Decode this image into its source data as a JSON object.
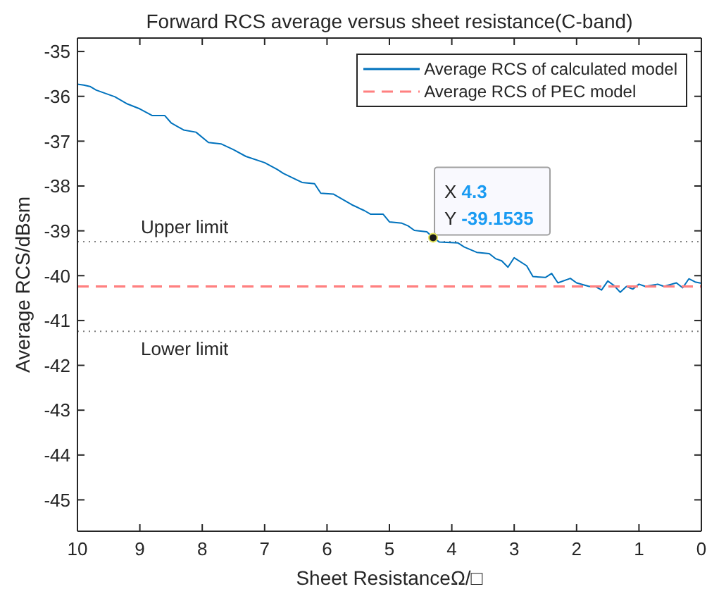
{
  "chart_data": {
    "type": "line",
    "title": "Forward RCS average versus sheet resistance(C-band)",
    "xlabel": "Sheet ResistanceΩ/□",
    "ylabel": "Average RCS/dBsm",
    "series": [
      {
        "name": "Average RCS of calculated model",
        "color": "#0072bd",
        "x": [
          10,
          9.9,
          9.8,
          9.7,
          9.4,
          9.2,
          9.0,
          8.8,
          8.6,
          8.5,
          8.3,
          8.1,
          7.9,
          7.7,
          7.5,
          7.3,
          7.0,
          6.8,
          6.7,
          6.4,
          6.2,
          6.1,
          5.9,
          5.6,
          5.4,
          5.3,
          5.1,
          5.0,
          4.8,
          4.7,
          4.6,
          4.4,
          4.3,
          4.2,
          3.9,
          3.8,
          3.6,
          3.4,
          3.3,
          3.2,
          3.1,
          3.0,
          2.8,
          2.7,
          2.5,
          2.4,
          2.3,
          2.1,
          2.0,
          1.8,
          1.7,
          1.6,
          1.5,
          1.4,
          1.3,
          1.2,
          1.1,
          1.0,
          0.9,
          0.7,
          0.6,
          0.4,
          0.3,
          0.2,
          0.1,
          0
        ],
        "values": [
          -35.73,
          -35.75,
          -35.78,
          -35.86,
          -36.01,
          -36.17,
          -36.28,
          -36.43,
          -36.43,
          -36.59,
          -36.75,
          -36.8,
          -37.03,
          -37.06,
          -37.19,
          -37.34,
          -37.48,
          -37.63,
          -37.72,
          -37.92,
          -37.95,
          -38.16,
          -38.18,
          -38.42,
          -38.55,
          -38.63,
          -38.63,
          -38.8,
          -38.83,
          -38.89,
          -38.99,
          -39.02,
          -39.15,
          -39.25,
          -39.27,
          -39.36,
          -39.48,
          -39.51,
          -39.62,
          -39.67,
          -39.81,
          -39.6,
          -39.78,
          -40.02,
          -40.04,
          -39.95,
          -40.16,
          -40.06,
          -40.16,
          -40.24,
          -40.24,
          -40.32,
          -40.12,
          -40.22,
          -40.37,
          -40.24,
          -40.3,
          -40.19,
          -40.24,
          -40.19,
          -40.24,
          -40.16,
          -40.27,
          -40.07,
          -40.14,
          -40.17
        ]
      },
      {
        "name": "Average RCS of PEC model",
        "color": "#ff8080",
        "line_style": "dashed",
        "x": [
          10,
          0
        ],
        "values": [
          -40.24,
          -40.24
        ]
      }
    ],
    "xlim": [
      10,
      0
    ],
    "ylim": [
      -45.7,
      -34.7
    ],
    "xticks": [
      10,
      9,
      8,
      7,
      6,
      5,
      4,
      3,
      2,
      1,
      0
    ],
    "yticks": [
      -45,
      -44,
      -43,
      -42,
      -41,
      -40,
      -39,
      -38,
      -37,
      -36,
      -35
    ],
    "ref_lines": [
      {
        "axis": "y",
        "value": -39.24,
        "label": "Upper limit",
        "color": "#808080",
        "line_style": "dotted"
      },
      {
        "axis": "y",
        "value": -41.24,
        "label": "Lower limit",
        "color": "#808080",
        "line_style": "dotted"
      }
    ],
    "annotations": [
      {
        "text": "X 4.3\nY -39.1535",
        "x": 4.3,
        "y": -39.1535
      }
    ],
    "legend": "top right"
  }
}
